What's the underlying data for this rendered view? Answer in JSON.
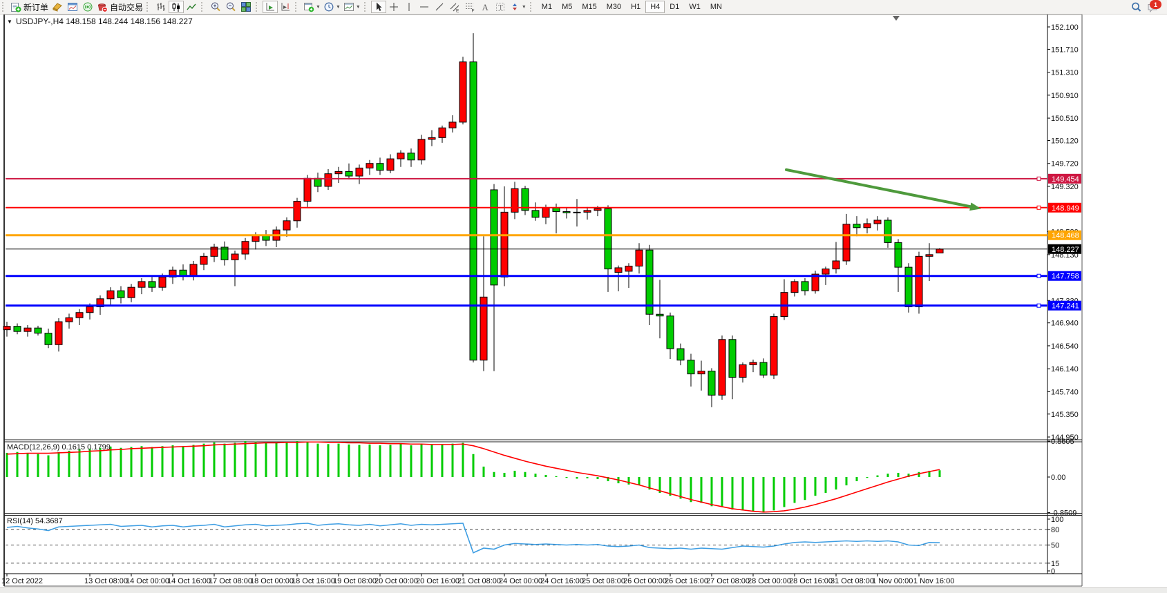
{
  "toolbar": {
    "new_order_label": "新订单",
    "autotrading_label": "自动交易",
    "timeframes": [
      "M1",
      "M5",
      "M15",
      "M30",
      "H1",
      "H4",
      "D1",
      "W1",
      "MN"
    ],
    "active_timeframe": "H4",
    "notification_badge": "1",
    "icons": {
      "new_order": "document-green-plus",
      "metaeditor": "gold-block",
      "chart_window": "blue-chart-window",
      "signals": "green-signal-circle",
      "autotrading": "red-bucket-stop",
      "chart_types": [
        "bars-chart",
        "candlestick-chart",
        "line-chart"
      ],
      "zoom": [
        "zoom-in-magnifier",
        "zoom-out-magnifier",
        "tile-windows"
      ],
      "scroll": [
        "auto-scroll",
        "chart-shift"
      ],
      "dropdowns": [
        "new-chart",
        "periodicity-clock",
        "templates"
      ],
      "drawing": [
        "cursor",
        "crosshair",
        "vertical-line",
        "horizontal-line",
        "trendline",
        "equidistant-channel",
        "fibonacci",
        "text",
        "text-label",
        "arrows"
      ],
      "right": [
        "search-magnifier",
        "chat-bubble"
      ]
    }
  },
  "chart": {
    "dropdown_glyph": "▼",
    "symbol_title": "USDJPY-,H4",
    "title_ohlc": "148.158 148.244 148.156 148.227"
  },
  "chart_data": {
    "type": "candlestick",
    "symbol": "USDJPY-",
    "period": "H4",
    "current_bar": {
      "open": 148.158,
      "high": 148.244,
      "low": 148.156,
      "close": 148.227
    },
    "price_axis_ticks": [
      "152.100",
      "151.710",
      "151.310",
      "150.910",
      "150.510",
      "150.120",
      "149.720",
      "149.320",
      "148.530",
      "148.130",
      "147.330",
      "146.940",
      "146.540",
      "146.140",
      "145.740",
      "145.350",
      "144.950"
    ],
    "horizontal_lines": [
      {
        "price": 149.454,
        "label": "149.454",
        "color": "#CE1742",
        "width": 2,
        "handle": true,
        "role": "resistance"
      },
      {
        "price": 148.949,
        "label": "148.949",
        "color": "#FF0000",
        "width": 2,
        "handle": true,
        "role": "resistance"
      },
      {
        "price": 148.468,
        "label": "148.468",
        "color": "#FFA500",
        "width": 3,
        "handle": false,
        "role": "level"
      },
      {
        "price": 148.227,
        "label": "148.227",
        "color": "#000000",
        "width": 1,
        "handle": false,
        "role": "current-price"
      },
      {
        "price": 147.758,
        "label": "147.758",
        "color": "#0000FF",
        "width": 3,
        "handle": true,
        "role": "support"
      },
      {
        "price": 147.241,
        "label": "147.241",
        "color": "#0000FF",
        "width": 3,
        "handle": true,
        "role": "support"
      }
    ],
    "trend_arrow": {
      "from_bar": 75.2,
      "from_price": 149.61,
      "to_bar": 94.0,
      "to_price": 148.93,
      "color": "#4E9A3C"
    },
    "time_labels": [
      {
        "bar": 0,
        "label": "12 Oct 2022"
      },
      {
        "bar": 8,
        "label": "13 Oct 08:00"
      },
      {
        "bar": 12,
        "label": "14 Oct 00:00"
      },
      {
        "bar": 16,
        "label": "14 Oct 16:00"
      },
      {
        "bar": 20,
        "label": "17 Oct 08:00"
      },
      {
        "bar": 24,
        "label": "18 Oct 00:00"
      },
      {
        "bar": 28,
        "label": "18 Oct 16:00"
      },
      {
        "bar": 32,
        "label": "19 Oct 08:00"
      },
      {
        "bar": 36,
        "label": "20 Oct 00:00"
      },
      {
        "bar": 40,
        "label": "20 Oct 16:00"
      },
      {
        "bar": 44,
        "label": "21 Oct 08:00"
      },
      {
        "bar": 48,
        "label": "24 Oct 00:00"
      },
      {
        "bar": 52,
        "label": "24 Oct 16:00"
      },
      {
        "bar": 56,
        "label": "25 Oct 08:00"
      },
      {
        "bar": 60,
        "label": "26 Oct 00:00"
      },
      {
        "bar": 64,
        "label": "26 Oct 16:00"
      },
      {
        "bar": 68,
        "label": "27 Oct 08:00"
      },
      {
        "bar": 72,
        "label": "28 Oct 00:00"
      },
      {
        "bar": 76,
        "label": "28 Oct 16:00"
      },
      {
        "bar": 80,
        "label": "31 Oct 08:00"
      },
      {
        "bar": 84,
        "label": "1 Nov 00:00"
      },
      {
        "bar": 88,
        "label": "1 Nov 16:00"
      }
    ],
    "candles": [
      [
        146.82,
        146.96,
        146.7,
        146.88
      ],
      [
        146.88,
        146.93,
        146.74,
        146.79
      ],
      [
        146.79,
        146.9,
        146.7,
        146.85
      ],
      [
        146.85,
        146.89,
        146.72,
        146.76
      ],
      [
        146.76,
        146.84,
        146.5,
        146.56
      ],
      [
        146.56,
        147.02,
        146.44,
        146.96
      ],
      [
        146.96,
        147.1,
        146.84,
        147.03
      ],
      [
        147.03,
        147.18,
        146.9,
        147.12
      ],
      [
        147.12,
        147.28,
        147.0,
        147.22
      ],
      [
        147.22,
        147.42,
        147.08,
        147.36
      ],
      [
        147.36,
        147.56,
        147.24,
        147.5
      ],
      [
        147.5,
        147.58,
        147.28,
        147.38
      ],
      [
        147.38,
        147.62,
        147.3,
        147.56
      ],
      [
        147.56,
        147.72,
        147.44,
        147.66
      ],
      [
        147.66,
        147.74,
        147.48,
        147.56
      ],
      [
        147.56,
        147.8,
        147.5,
        147.74
      ],
      [
        147.74,
        147.92,
        147.62,
        147.86
      ],
      [
        147.86,
        147.96,
        147.68,
        147.76
      ],
      [
        147.76,
        148.02,
        147.68,
        147.96
      ],
      [
        147.96,
        148.16,
        147.86,
        148.1
      ],
      [
        148.1,
        148.32,
        148.0,
        148.26
      ],
      [
        148.26,
        148.36,
        147.94,
        148.04
      ],
      [
        148.04,
        148.2,
        147.58,
        148.14
      ],
      [
        148.14,
        148.42,
        148.04,
        148.36
      ],
      [
        148.36,
        148.52,
        148.22,
        148.46
      ],
      [
        148.46,
        148.56,
        148.28,
        148.38
      ],
      [
        148.38,
        148.62,
        148.26,
        148.56
      ],
      [
        148.56,
        148.78,
        148.44,
        148.72
      ],
      [
        148.72,
        149.12,
        148.6,
        149.06
      ],
      [
        149.06,
        149.52,
        148.96,
        149.46
      ],
      [
        149.46,
        149.56,
        149.22,
        149.32
      ],
      [
        149.32,
        149.62,
        149.26,
        149.54
      ],
      [
        149.54,
        149.66,
        149.38,
        149.58
      ],
      [
        149.58,
        149.72,
        149.44,
        149.5
      ],
      [
        149.5,
        149.7,
        149.36,
        149.64
      ],
      [
        149.64,
        149.78,
        149.52,
        149.72
      ],
      [
        149.72,
        149.82,
        149.52,
        149.6
      ],
      [
        149.6,
        149.88,
        149.55,
        149.8
      ],
      [
        149.8,
        149.95,
        149.66,
        149.9
      ],
      [
        149.9,
        149.98,
        149.66,
        149.78
      ],
      [
        149.78,
        150.22,
        149.7,
        150.14
      ],
      [
        150.14,
        150.3,
        150.02,
        150.17
      ],
      [
        150.17,
        150.38,
        150.08,
        150.34
      ],
      [
        150.34,
        150.56,
        150.26,
        150.44
      ],
      [
        150.44,
        151.58,
        150.4,
        151.49
      ],
      [
        151.49,
        151.99,
        146.25,
        146.29
      ],
      [
        146.29,
        148.45,
        146.1,
        147.39
      ],
      [
        149.26,
        149.36,
        146.1,
        147.6
      ],
      [
        147.74,
        149.32,
        147.58,
        148.87
      ],
      [
        148.87,
        149.4,
        148.75,
        149.28
      ],
      [
        149.28,
        149.33,
        148.82,
        148.9
      ],
      [
        148.9,
        149.04,
        148.72,
        148.78
      ],
      [
        148.78,
        149.0,
        148.66,
        148.95
      ],
      [
        148.95,
        149.02,
        148.5,
        148.88
      ],
      [
        148.88,
        148.94,
        148.76,
        148.86
      ],
      [
        148.86,
        149.1,
        148.62,
        148.87
      ],
      [
        148.87,
        148.96,
        148.74,
        148.9
      ],
      [
        148.9,
        148.98,
        148.8,
        148.93
      ],
      [
        148.93,
        148.99,
        147.48,
        147.88
      ],
      [
        147.82,
        147.94,
        147.49,
        147.9
      ],
      [
        147.84,
        147.98,
        147.55,
        147.93
      ],
      [
        147.93,
        148.33,
        147.8,
        148.21
      ],
      [
        148.21,
        148.3,
        146.9,
        147.09
      ],
      [
        147.09,
        147.69,
        146.67,
        147.06
      ],
      [
        147.06,
        147.12,
        146.31,
        146.49
      ],
      [
        146.49,
        146.58,
        146.2,
        146.29
      ],
      [
        146.29,
        146.4,
        145.83,
        146.05
      ],
      [
        146.05,
        146.28,
        145.76,
        146.1
      ],
      [
        146.1,
        146.15,
        145.47,
        145.68
      ],
      [
        145.68,
        146.72,
        145.6,
        146.65
      ],
      [
        146.65,
        146.72,
        145.61,
        145.99
      ],
      [
        145.99,
        146.25,
        145.9,
        146.21
      ],
      [
        146.21,
        146.3,
        146.08,
        146.25
      ],
      [
        146.25,
        146.32,
        145.98,
        146.03
      ],
      [
        146.03,
        147.1,
        145.96,
        147.05
      ],
      [
        147.05,
        147.7,
        146.99,
        147.47
      ],
      [
        147.47,
        147.7,
        147.4,
        147.66
      ],
      [
        147.66,
        147.72,
        147.42,
        147.5
      ],
      [
        147.5,
        147.85,
        147.45,
        147.79
      ],
      [
        147.79,
        147.92,
        147.6,
        147.88
      ],
      [
        147.88,
        148.35,
        147.8,
        148.02
      ],
      [
        148.02,
        148.84,
        147.95,
        148.66
      ],
      [
        148.66,
        148.8,
        148.45,
        148.6
      ],
      [
        148.6,
        148.76,
        148.5,
        148.67
      ],
      [
        148.67,
        148.8,
        148.55,
        148.73
      ],
      [
        148.73,
        148.78,
        148.25,
        148.34
      ],
      [
        148.34,
        148.4,
        147.48,
        147.91
      ],
      [
        147.91,
        147.98,
        147.12,
        147.22
      ],
      [
        147.22,
        148.18,
        147.1,
        148.1
      ],
      [
        148.1,
        148.33,
        147.67,
        148.13
      ],
      [
        148.158,
        148.244,
        148.156,
        148.227
      ]
    ],
    "indicators": {
      "macd": {
        "name": "MACD(12,26,9)",
        "value_text": "0.1615 0.1799",
        "axis": [
          "0.8605",
          "0.00",
          "-0.8509"
        ],
        "histogram": [
          0.58,
          0.6,
          0.57,
          0.55,
          0.52,
          0.6,
          0.63,
          0.66,
          0.68,
          0.7,
          0.73,
          0.7,
          0.72,
          0.74,
          0.72,
          0.74,
          0.76,
          0.74,
          0.77,
          0.8,
          0.83,
          0.8,
          0.82,
          0.86,
          0.85,
          0.82,
          0.83,
          0.84,
          0.86,
          0.85,
          0.8,
          0.79,
          0.8,
          0.78,
          0.77,
          0.78,
          0.76,
          0.77,
          0.79,
          0.76,
          0.78,
          0.77,
          0.78,
          0.8,
          0.82,
          0.55,
          0.25,
          0.12,
          0.1,
          0.15,
          0.12,
          0.08,
          0.05,
          0.02,
          -0.02,
          -0.04,
          -0.03,
          -0.05,
          -0.1,
          -0.15,
          -0.18,
          -0.2,
          -0.3,
          -0.38,
          -0.45,
          -0.52,
          -0.6,
          -0.62,
          -0.7,
          -0.72,
          -0.78,
          -0.8,
          -0.83,
          -0.85,
          -0.8,
          -0.72,
          -0.62,
          -0.55,
          -0.45,
          -0.38,
          -0.3,
          -0.2,
          -0.1,
          -0.02,
          0.04,
          0.08,
          0.1,
          0.08,
          0.12,
          0.15,
          0.1615
        ],
        "signal": [
          0.55,
          0.56,
          0.57,
          0.57,
          0.57,
          0.58,
          0.59,
          0.6,
          0.62,
          0.63,
          0.65,
          0.66,
          0.68,
          0.69,
          0.7,
          0.71,
          0.72,
          0.73,
          0.74,
          0.75,
          0.77,
          0.78,
          0.79,
          0.8,
          0.81,
          0.82,
          0.82,
          0.83,
          0.83,
          0.84,
          0.84,
          0.83,
          0.83,
          0.82,
          0.82,
          0.81,
          0.81,
          0.8,
          0.8,
          0.79,
          0.79,
          0.78,
          0.78,
          0.78,
          0.79,
          0.75,
          0.68,
          0.6,
          0.52,
          0.45,
          0.38,
          0.32,
          0.26,
          0.21,
          0.16,
          0.11,
          0.07,
          0.03,
          -0.02,
          -0.07,
          -0.13,
          -0.19,
          -0.26,
          -0.33,
          -0.4,
          -0.47,
          -0.54,
          -0.6,
          -0.66,
          -0.71,
          -0.76,
          -0.79,
          -0.82,
          -0.84,
          -0.83,
          -0.81,
          -0.77,
          -0.72,
          -0.66,
          -0.59,
          -0.52,
          -0.44,
          -0.36,
          -0.28,
          -0.2,
          -0.12,
          -0.05,
          0.02,
          0.08,
          0.13,
          0.1799
        ]
      },
      "rsi": {
        "name": "RSI(14)",
        "value_text": "54.3687",
        "axis": [
          "100",
          "80",
          "50",
          "15",
          "0"
        ],
        "levels": [
          80,
          50,
          15
        ],
        "values": [
          84,
          86,
          83,
          81,
          78,
          85,
          86,
          87,
          88,
          89,
          90,
          86,
          87,
          88,
          85,
          87,
          88,
          85,
          87,
          88,
          90,
          85,
          87,
          89,
          90,
          87,
          88,
          89,
          91,
          92,
          88,
          90,
          91,
          89,
          88,
          90,
          87,
          89,
          91,
          88,
          90,
          89,
          90,
          91,
          92,
          35,
          44,
          42,
          50,
          53,
          52,
          51,
          52,
          51,
          50,
          51,
          50,
          51,
          48,
          47,
          48,
          50,
          45,
          44,
          43,
          44,
          42,
          44,
          43,
          42,
          45,
          48,
          47,
          46,
          48,
          52,
          55,
          56,
          55,
          56,
          57,
          58,
          57,
          58,
          57,
          58,
          56,
          50,
          49,
          55,
          54.3687
        ]
      }
    }
  },
  "colors": {
    "bull_candle": "#FF0000",
    "bear_candle": "#00CC00",
    "candle_outline": "#000000",
    "macd_histogram": "#00CC00",
    "macd_signal": "#FF0000",
    "rsi_line": "#3E9EE3",
    "axis_text": "#111111",
    "frame": "#555555",
    "badge_text": "#FFFFFF"
  }
}
